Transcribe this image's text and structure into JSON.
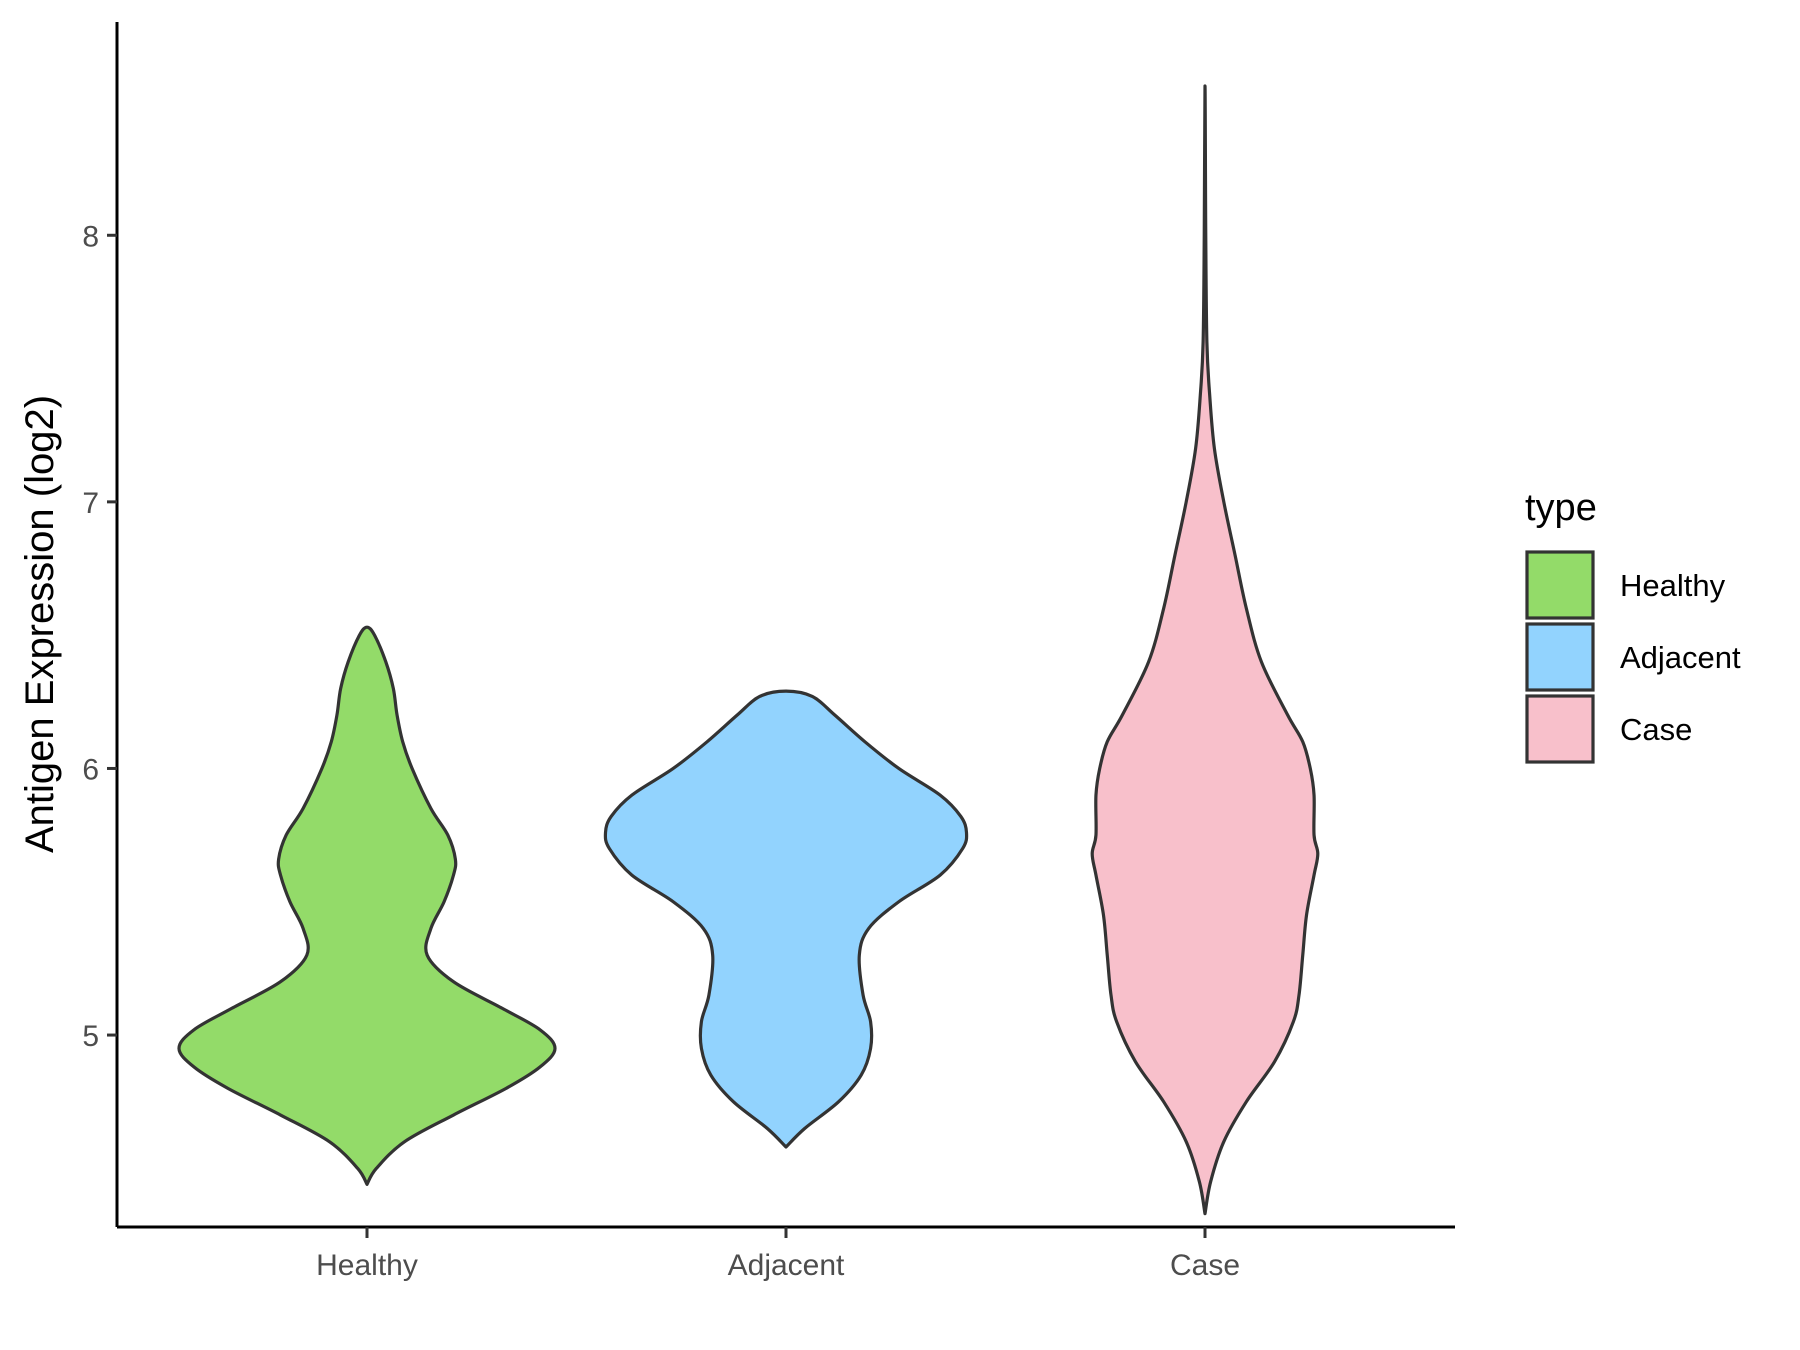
{
  "chart_data": {
    "type": "violin",
    "title": "",
    "xlabel": "",
    "ylabel": "Antigen Expression (log2)",
    "ylim": [
      4.28,
      8.8
    ],
    "yticks": [
      5,
      6,
      7,
      8
    ],
    "categories": [
      "Healthy",
      "Adjacent",
      "Case"
    ],
    "grid": false,
    "legend": {
      "title": "type",
      "position": "right",
      "entries": [
        "Healthy",
        "Adjacent",
        "Case"
      ]
    },
    "series": [
      {
        "name": "Healthy",
        "color": "#93db69",
        "profile": [
          [
            4.44,
            0.0
          ],
          [
            4.5,
            0.05
          ],
          [
            4.6,
            0.2
          ],
          [
            4.7,
            0.46
          ],
          [
            4.8,
            0.74
          ],
          [
            4.88,
            0.92
          ],
          [
            4.95,
            1.0
          ],
          [
            5.02,
            0.92
          ],
          [
            5.1,
            0.72
          ],
          [
            5.2,
            0.46
          ],
          [
            5.3,
            0.32
          ],
          [
            5.4,
            0.34
          ],
          [
            5.5,
            0.41
          ],
          [
            5.6,
            0.46
          ],
          [
            5.66,
            0.47
          ],
          [
            5.75,
            0.43
          ],
          [
            5.85,
            0.34
          ],
          [
            6.0,
            0.24
          ],
          [
            6.1,
            0.19
          ],
          [
            6.2,
            0.16
          ],
          [
            6.3,
            0.14
          ],
          [
            6.4,
            0.1
          ],
          [
            6.5,
            0.04
          ],
          [
            6.53,
            0.0
          ]
        ]
      },
      {
        "name": "Adjacent",
        "color": "#92d3fe",
        "profile": [
          [
            4.58,
            0.0
          ],
          [
            4.65,
            0.1
          ],
          [
            4.75,
            0.28
          ],
          [
            4.85,
            0.4
          ],
          [
            4.95,
            0.45
          ],
          [
            5.05,
            0.45
          ],
          [
            5.15,
            0.41
          ],
          [
            5.3,
            0.39
          ],
          [
            5.4,
            0.44
          ],
          [
            5.5,
            0.6
          ],
          [
            5.6,
            0.82
          ],
          [
            5.7,
            0.94
          ],
          [
            5.76,
            0.96
          ],
          [
            5.82,
            0.93
          ],
          [
            5.9,
            0.82
          ],
          [
            6.0,
            0.6
          ],
          [
            6.1,
            0.42
          ],
          [
            6.2,
            0.26
          ],
          [
            6.27,
            0.14
          ],
          [
            6.29,
            0.0
          ]
        ]
      },
      {
        "name": "Case",
        "color": "#f8c0cb",
        "profile": [
          [
            4.33,
            0.0
          ],
          [
            4.45,
            0.03
          ],
          [
            4.6,
            0.1
          ],
          [
            4.75,
            0.22
          ],
          [
            4.9,
            0.37
          ],
          [
            5.05,
            0.47
          ],
          [
            5.15,
            0.5
          ],
          [
            5.3,
            0.52
          ],
          [
            5.45,
            0.54
          ],
          [
            5.6,
            0.58
          ],
          [
            5.68,
            0.6
          ],
          [
            5.75,
            0.58
          ],
          [
            5.9,
            0.58
          ],
          [
            6.0,
            0.56
          ],
          [
            6.1,
            0.52
          ],
          [
            6.2,
            0.44
          ],
          [
            6.4,
            0.3
          ],
          [
            6.6,
            0.22
          ],
          [
            6.8,
            0.16
          ],
          [
            7.0,
            0.1
          ],
          [
            7.2,
            0.05
          ],
          [
            7.4,
            0.025
          ],
          [
            7.6,
            0.01
          ],
          [
            8.0,
            0.004
          ],
          [
            8.56,
            0.0
          ]
        ]
      }
    ]
  }
}
